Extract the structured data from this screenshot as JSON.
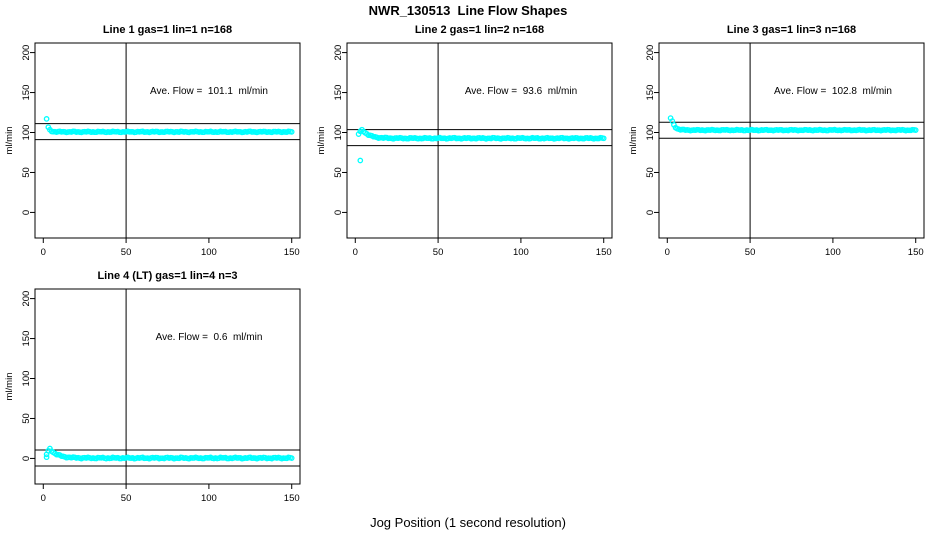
{
  "page": {
    "main_title": "NWR_130513  Line Flow Shapes",
    "outer_xlabel": "Jog Position (1 second resolution)",
    "background_color": "#ffffff",
    "point_color": "#00FFFF",
    "line_color": "#000000"
  },
  "axes": {
    "xlim": [
      -5,
      155
    ],
    "ylim": [
      -32,
      212
    ],
    "xticks": [
      0,
      50,
      100,
      150
    ],
    "yticks": [
      0,
      50,
      100,
      150,
      200
    ],
    "ylabel": "ml/min",
    "vline_x": 50,
    "grid": false
  },
  "chart_data": [
    {
      "type": "scatter",
      "title": "Line 1 gas=1 lin=1 n=168",
      "annotation": "Ave. Flow =  101.1  ml/min",
      "ave_flow_ml_min": 101.1,
      "n": 168,
      "hlines": [
        111.1,
        91.1
      ],
      "extra_points": [
        [
          2,
          117
        ]
      ],
      "model": {
        "x_start": 3,
        "x_end": 150,
        "settle": 100.8,
        "amp": 5.5,
        "tau": 1.2,
        "jitter": 0.7
      }
    },
    {
      "type": "scatter",
      "title": "Line 2 gas=1 lin=2 n=168",
      "annotation": "Ave. Flow =  93.6  ml/min",
      "ave_flow_ml_min": 93.6,
      "n": 168,
      "hlines": [
        103.6,
        83.6
      ],
      "extra_points": [
        [
          2,
          98
        ],
        [
          3,
          101.5
        ],
        [
          4,
          103.5
        ],
        [
          3,
          65
        ]
      ],
      "model": {
        "x_start": 5,
        "x_end": 150,
        "settle": 92.8,
        "amp": 9,
        "tau": 4,
        "jitter": 0.8
      }
    },
    {
      "type": "scatter",
      "title": "Line 3 gas=1 lin=3 n=168",
      "annotation": "Ave. Flow =  102.8  ml/min",
      "ave_flow_ml_min": 102.8,
      "n": 168,
      "hlines": [
        112.8,
        92.8
      ],
      "extra_points": [
        [
          2,
          118
        ]
      ],
      "model": {
        "x_start": 3,
        "x_end": 150,
        "settle": 103,
        "amp": 11,
        "tau": 1.8,
        "jitter": 0.7
      }
    },
    {
      "type": "scatter",
      "title": "Line 4 (LT) gas=1 lin=4 n=3",
      "annotation": "Ave. Flow =  0.6  ml/min",
      "ave_flow_ml_min": 0.6,
      "n": 3,
      "hlines": [
        10.6,
        -9.4
      ],
      "extra_points": [
        [
          2,
          5
        ],
        [
          2,
          1.5
        ],
        [
          3,
          9.5
        ]
      ],
      "model": {
        "x_start": 4,
        "x_end": 150,
        "settle": 0.5,
        "amp": 11.5,
        "tau": 4.5,
        "jitter": 0.9
      }
    }
  ]
}
